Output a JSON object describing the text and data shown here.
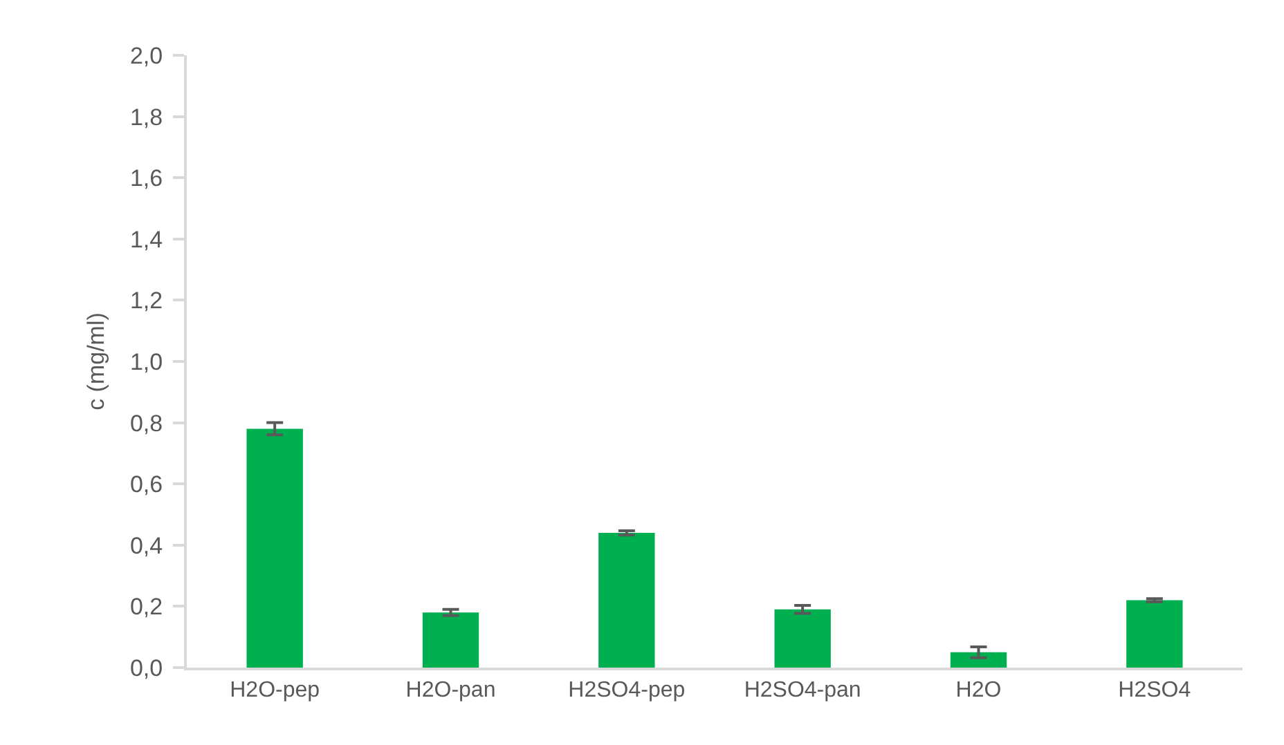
{
  "chart_data": {
    "type": "bar",
    "ylabel": "c (mg/ml)",
    "categories": [
      "H2O-pep",
      "H2O-pan",
      "H2SO4-pep",
      "H2SO4-pan",
      "H2O",
      "H2SO4"
    ],
    "values": [
      0.78,
      0.18,
      0.44,
      0.19,
      0.05,
      0.22
    ],
    "errors": [
      0.02,
      0.01,
      0.007,
      0.013,
      0.018,
      0.005
    ],
    "color": "#00b050",
    "ylim": [
      0,
      2
    ],
    "yticks": [
      {
        "value": 0,
        "label": "0,0"
      },
      {
        "value": 0.2,
        "label": "0,2"
      },
      {
        "value": 0.4,
        "label": "0,4"
      },
      {
        "value": 0.6,
        "label": "0,6"
      },
      {
        "value": 0.8,
        "label": "0,8"
      },
      {
        "value": 1,
        "label": "1,0"
      },
      {
        "value": 1.2,
        "label": "1,2"
      },
      {
        "value": 1.4,
        "label": "1,4"
      },
      {
        "value": 1.6,
        "label": "1,6"
      },
      {
        "value": 1.8,
        "label": "1,8"
      },
      {
        "value": 2,
        "label": "2,0"
      }
    ],
    "grid": false
  }
}
